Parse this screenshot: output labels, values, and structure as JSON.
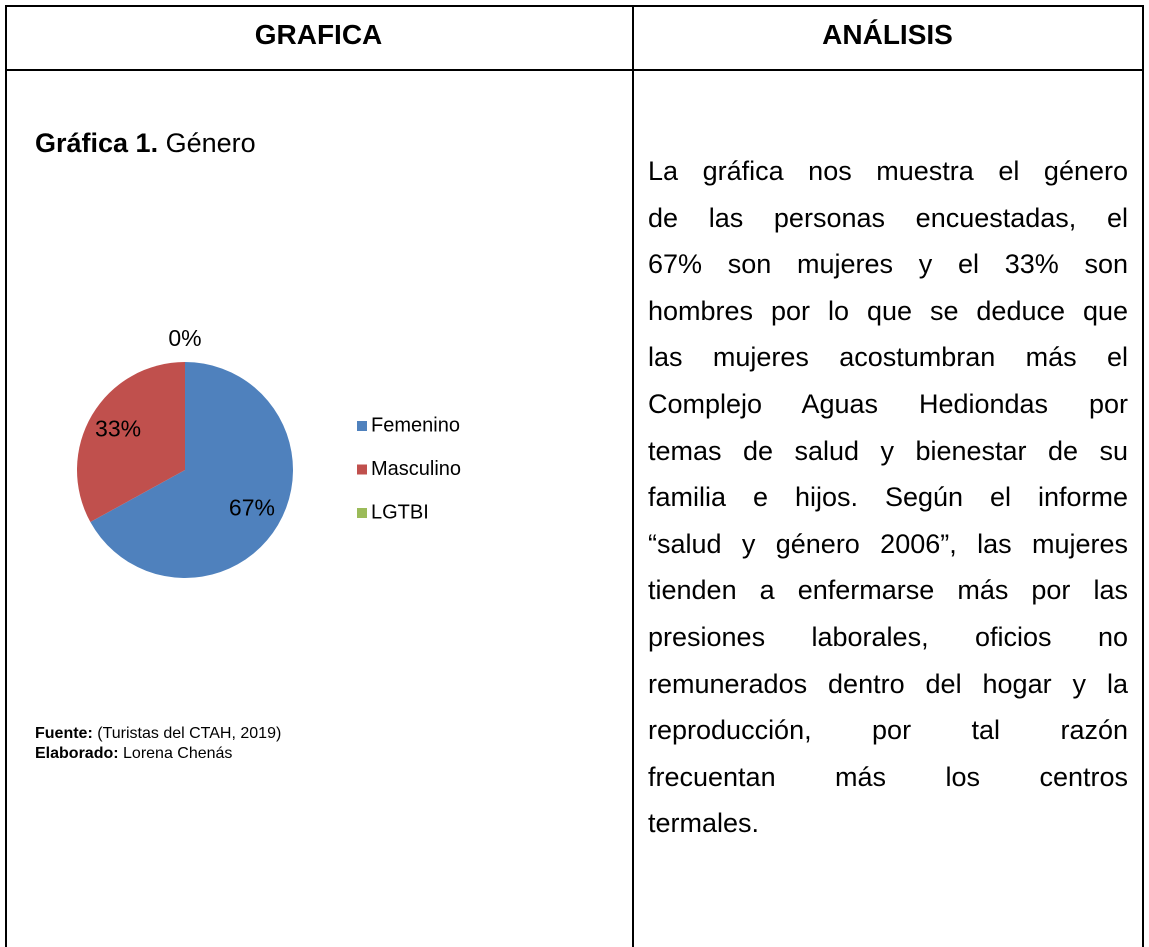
{
  "table": {
    "headers": [
      "GRAFICA",
      "ANÁLISIS"
    ],
    "caption": {
      "label": "Gráfica 1.",
      "text": "Género"
    },
    "source": {
      "label": "Fuente:",
      "text": "(Turistas del CTAH, 2019)"
    },
    "author": {
      "label": "Elaborado:",
      "text": "Lorena Chenás"
    },
    "analysis": [
      "La gráfica nos muestra el género",
      "de las personas encuestadas, el",
      "67% son mujeres y el 33% son",
      "hombres por lo que se deduce que",
      "las mujeres acostumbran más el",
      "Complejo Aguas Hediondas por",
      "temas de salud y bienestar de su",
      "familia e hijos. Según el informe",
      "“salud y género 2006”, las mujeres",
      "tienden a enfermarse más por las",
      "presiones laborales, oficios no",
      "remunerados dentro del hogar y la",
      "reproducción, por tal razón",
      "frecuentan más los centros",
      "termales."
    ]
  },
  "chart_data": {
    "type": "pie",
    "categories": [
      "Femenino",
      "Masculino",
      "LGTBI"
    ],
    "values": [
      67,
      33,
      0
    ],
    "value_labels": [
      "67%",
      "33%",
      "0%"
    ],
    "colors": [
      "#4f81bd",
      "#c0504d",
      "#9bbb59"
    ],
    "legend": "right"
  }
}
